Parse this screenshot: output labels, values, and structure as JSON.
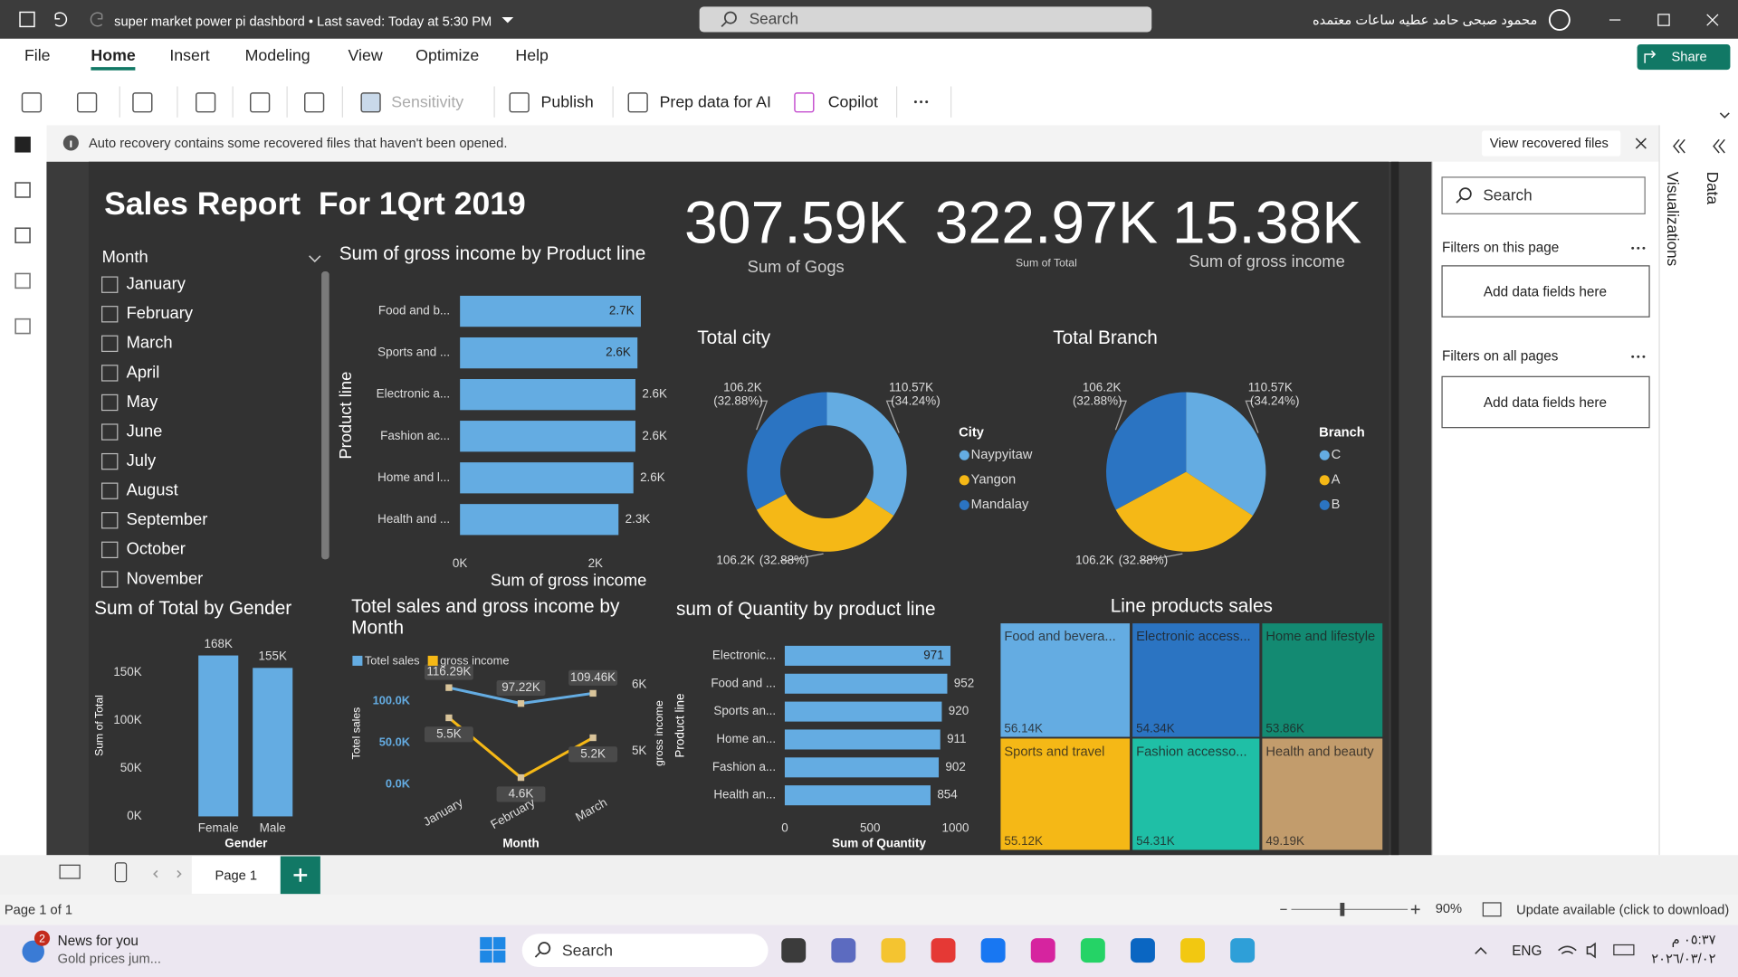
{
  "title_bar": {
    "document": "super market power pi dashbord • Last saved: Today at 5:30 PM",
    "search": "Search",
    "user": "محمود صبحى حامد عطيه ساعات معتمده"
  },
  "menu": {
    "items": [
      "File",
      "Home",
      "Insert",
      "Modeling",
      "View",
      "Optimize",
      "Help"
    ],
    "share": "Share"
  },
  "ribbon": {
    "items": [
      "Sensitivity",
      "Publish",
      "Prep data for AI",
      "Copilot"
    ]
  },
  "notice": {
    "text": "Auto recovery contains some recovered files that haven't been opened.",
    "button": "View recovered files"
  },
  "report": {
    "title": "Sales Report  For 1Qrt 2019",
    "kpis": [
      {
        "value": "307.59K",
        "label": "Sum of Gogs"
      },
      {
        "value": "322.97K",
        "label": "Sum of Total"
      },
      {
        "value": "15.38K",
        "label": "Sum of gross income"
      }
    ],
    "slicer": {
      "title": "Month",
      "items": [
        "January",
        "February",
        "March",
        "April",
        "May",
        "June",
        "July",
        "August",
        "September",
        "October",
        "November"
      ]
    },
    "charts": [
      {
        "type": "bar",
        "orientation": "horizontal",
        "title": "Sum of gross income by Product line",
        "categories": [
          "Food and b...",
          "Sports and ...",
          "Electronic a...",
          "Fashion ac...",
          "Home and l...",
          "Health and ..."
        ],
        "values": [
          2670,
          2620,
          2590,
          2590,
          2560,
          2340
        ],
        "value_labels": [
          "2.7K",
          "2.6K",
          "2.6K",
          "2.6K",
          "2.6K",
          "2.3K"
        ],
        "color": "#64ace2",
        "xlim": [
          0,
          2700
        ],
        "xticks": [
          {
            "value": 0,
            "label": "0K"
          },
          {
            "value": 2000,
            "label": "2K"
          }
        ],
        "x_label": "Sum of gross income",
        "y_label": "Product line"
      },
      {
        "type": "donut",
        "title": "Total city",
        "legend_title": "City",
        "categories": [
          "Naypyitaw",
          "Yangon",
          "Mandalay"
        ],
        "values": [
          110570,
          106200,
          106200
        ],
        "value_labels": [
          "110.57K",
          "106.2K",
          "106.2K"
        ],
        "percent_labels": [
          "(34.24%)",
          "(32.88%)",
          "(32.88%)"
        ],
        "colors": [
          "#64ace2",
          "#f5b816",
          "#2b74c2"
        ]
      },
      {
        "type": "pie",
        "title": "Total Branch",
        "legend_title": "Branch",
        "categories": [
          "C",
          "A",
          "B"
        ],
        "values": [
          110570,
          106200,
          106200
        ],
        "value_labels": [
          "110.57K",
          "106.2K",
          "106.2K"
        ],
        "percent_labels": [
          "(34.24%)",
          "(32.88%)",
          "(32.88%)"
        ],
        "colors": [
          "#64ace2",
          "#f5b816",
          "#2b74c2"
        ]
      },
      {
        "type": "bar",
        "orientation": "vertical",
        "title": "Sum of Total by Gender",
        "categories": [
          "Female",
          "Male"
        ],
        "values": [
          168000,
          155000
        ],
        "value_labels": [
          "168K",
          "155K"
        ],
        "color": "#64ace2",
        "ylim": [
          0,
          170000
        ],
        "yticks": [
          {
            "value": 0,
            "label": "0K"
          },
          {
            "value": 50000,
            "label": "50K"
          },
          {
            "value": 100000,
            "label": "100K"
          },
          {
            "value": 150000,
            "label": "150K"
          }
        ],
        "x_label": "Gender",
        "y_label": "Sum of Total"
      },
      {
        "type": "line",
        "title": "Totel sales and gross income by Month",
        "categories": [
          "January",
          "February",
          "March"
        ],
        "series": [
          {
            "name": "Totel sales",
            "color": "#64ace2",
            "values": [
              116290,
              97220,
              109460
            ],
            "value_labels": [
              "116.29K",
              "97.22K",
              "109.46K"
            ]
          },
          {
            "name": "gross income",
            "color": "#f5b816",
            "axis": "y2",
            "values": [
              5500,
              4600,
              5200
            ],
            "value_labels": [
              "5.5K",
              "4.6K",
              "5.2K"
            ]
          }
        ],
        "ylim": [
          0,
          120000
        ],
        "yticks": [
          {
            "value": 0,
            "label": "0.0K"
          },
          {
            "value": 50000,
            "label": "50.0K"
          },
          {
            "value": 100000,
            "label": "100.0K"
          }
        ],
        "y2lim": [
          4500,
          6000
        ],
        "y2ticks": [
          {
            "value": 5000,
            "label": "5K"
          },
          {
            "value": 6000,
            "label": "6K"
          }
        ],
        "x_label": "Month",
        "y_label": "Totel sales",
        "y2_label": "gross income"
      },
      {
        "type": "bar",
        "orientation": "horizontal",
        "title": "sum of Quantity by product line",
        "categories": [
          "Electronic...",
          "Food and ...",
          "Sports an...",
          "Home an...",
          "Fashion a...",
          "Health an..."
        ],
        "values": [
          971,
          952,
          920,
          911,
          902,
          854
        ],
        "color": "#64ace2",
        "xlim": [
          0,
          1000
        ],
        "xticks": [
          0,
          500,
          1000
        ],
        "x_label": "Sum of Quantity",
        "y_label": "Product line"
      },
      {
        "type": "treemap",
        "title": "Line products sales",
        "categories": [
          "Food and bevera...",
          "Electronic access...",
          "Home and lifestyle",
          "Sports and travel",
          "Fashion accesso...",
          "Health and beauty"
        ],
        "values": [
          56140,
          54340,
          53860,
          55120,
          54310,
          49190
        ],
        "value_labels": [
          "56.14K",
          "54.34K",
          "53.86K",
          "55.12K",
          "54.31K",
          "49.19K"
        ],
        "colors": [
          "#64ace2",
          "#2b74c2",
          "#138a72",
          "#f5b816",
          "#1fbfa6",
          "#c29c6c"
        ]
      }
    ]
  },
  "filters": {
    "search": "Search",
    "sections": [
      {
        "title": "Filters on this page",
        "placeholder": "Add data fields here"
      },
      {
        "title": "Filters on all pages",
        "placeholder": "Add data fields here"
      }
    ]
  },
  "side_tabs": [
    "Visualizations",
    "Data"
  ],
  "page_tabs": {
    "tab": "Page 1",
    "status": "Page 1 of 1",
    "zoom": "90%",
    "update": "Update available (click to download)"
  },
  "taskbar": {
    "badge": "2",
    "news_title": "News for you",
    "news_text": "Gold prices jum...",
    "search": "Search",
    "language": "ENG",
    "time": "٠٥:٣٧ م",
    "date": "٢٠٢٦/٠٣/٠٢"
  }
}
